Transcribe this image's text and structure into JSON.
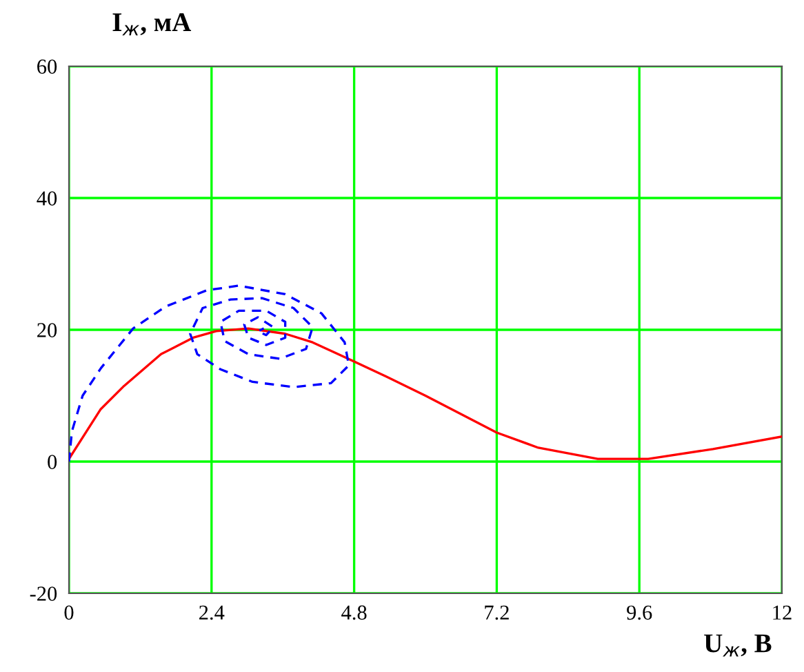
{
  "chart_data": {
    "type": "line",
    "xlabel": "U$_{ж}$, В",
    "ylabel": "I$_{ж}$, мА",
    "xlim": [
      0,
      12
    ],
    "ylim": [
      -20,
      60
    ],
    "xticks": [
      0,
      2.4,
      4.8,
      7.2,
      9.6,
      12
    ],
    "yticks": [
      -20,
      0,
      20,
      40,
      60
    ],
    "grid": true,
    "series": [
      {
        "color": "#ff0000",
        "line_style": "solid",
        "x": [
          0,
          0.53,
          0.93,
          1.55,
          2.09,
          2.48,
          3.02,
          3.64,
          4.1,
          4.7,
          5.34,
          6.0,
          7.2,
          7.9,
          8.9,
          9.75,
          10.84,
          12
        ],
        "values": [
          0.4,
          7.9,
          11.5,
          16.3,
          18.8,
          19.8,
          20.2,
          19.4,
          18.1,
          15.6,
          12.9,
          10,
          4.4,
          2.1,
          0.4,
          0.4,
          1.9,
          3.8
        ]
      },
      {
        "color": "#0000ff",
        "line_style": "dashed",
        "x": [
          0,
          0.05,
          0.23,
          0.54,
          1.08,
          1.62,
          2.32,
          2.86,
          3.64,
          4.25,
          4.64,
          4.71,
          4.41,
          3.78,
          3.09,
          2.55,
          2.16,
          2.04,
          2.25,
          2.72,
          3.25,
          3.78,
          4.1,
          3.99,
          3.55,
          3.02,
          2.62,
          2.55,
          2.86,
          3.32,
          3.64,
          3.64,
          3.32,
          3.02,
          2.95,
          3.18,
          3.44,
          3.32,
          3.18,
          3.28
        ],
        "values": [
          0,
          4.6,
          10,
          14.2,
          20.2,
          23.5,
          26,
          26.7,
          25.4,
          22.5,
          18.1,
          14.6,
          11.9,
          11.3,
          12.1,
          14,
          16.3,
          19.4,
          23.3,
          24.6,
          24.8,
          23.3,
          20.4,
          17.1,
          15.6,
          16.3,
          18.3,
          21.2,
          22.9,
          22.9,
          21.2,
          18.8,
          17.7,
          18.8,
          20.8,
          21.9,
          20.4,
          19.2,
          19.8,
          20.2
        ]
      }
    ]
  }
}
